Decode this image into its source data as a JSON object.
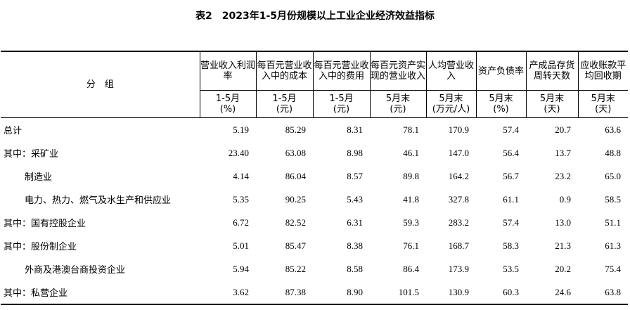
{
  "title": "表2　2023年1-5月份规模以上工业企业经济效益指标",
  "group_header": "分　组",
  "columns": [
    {
      "label": "营业收入利润率",
      "unit_period": "1-5月",
      "unit": "(%)"
    },
    {
      "label": "每百元营业收入中的成本",
      "unit_period": "1-5月",
      "unit": "(元)"
    },
    {
      "label": "每百元营业收入中的费用",
      "unit_period": "1-5月",
      "unit": "(元)"
    },
    {
      "label": "每百元资产实现的营业收入",
      "unit_period": "5月末",
      "unit": "(元)"
    },
    {
      "label": "人均营业收入",
      "unit_period": "5月末",
      "unit": "(万元/人)"
    },
    {
      "label": "资产负债率",
      "unit_period": "5月末",
      "unit": "(%)"
    },
    {
      "label": "产成品存货周转天数",
      "unit_period": "5月末",
      "unit": "(天)"
    },
    {
      "label": "应收账款平均回收期",
      "unit_period": "5月末",
      "unit": "(天)"
    }
  ],
  "rows": [
    {
      "name": "总计",
      "values": [
        "5.19",
        "85.29",
        "8.31",
        "78.1",
        "170.9",
        "57.4",
        "20.7",
        "63.6"
      ]
    },
    {
      "name": "其中：采矿业",
      "values": [
        "23.40",
        "63.08",
        "8.98",
        "46.1",
        "147.0",
        "56.4",
        "13.7",
        "48.8"
      ]
    },
    {
      "name": "制造业",
      "values": [
        "4.14",
        "86.04",
        "8.57",
        "89.8",
        "164.2",
        "56.7",
        "23.2",
        "65.0"
      ]
    },
    {
      "name": "电力、热力、燃气及水生产和供应业",
      "values": [
        "5.35",
        "90.25",
        "5.43",
        "41.8",
        "327.8",
        "61.1",
        "0.9",
        "58.5"
      ]
    },
    {
      "name": "其中：国有控股企业",
      "values": [
        "6.72",
        "82.52",
        "6.31",
        "59.3",
        "283.2",
        "57.4",
        "13.0",
        "51.1"
      ]
    },
    {
      "name": "其中：股份制企业",
      "values": [
        "5.01",
        "85.47",
        "8.38",
        "76.1",
        "168.7",
        "58.3",
        "21.3",
        "61.3"
      ]
    },
    {
      "name": "外商及港澳台商投资企业",
      "values": [
        "5.94",
        "85.22",
        "8.58",
        "86.4",
        "173.9",
        "53.5",
        "20.2",
        "75.4"
      ]
    },
    {
      "name": "其中：私营企业",
      "values": [
        "3.62",
        "87.38",
        "8.90",
        "101.5",
        "130.9",
        "60.3",
        "24.6",
        "63.8"
      ]
    }
  ]
}
